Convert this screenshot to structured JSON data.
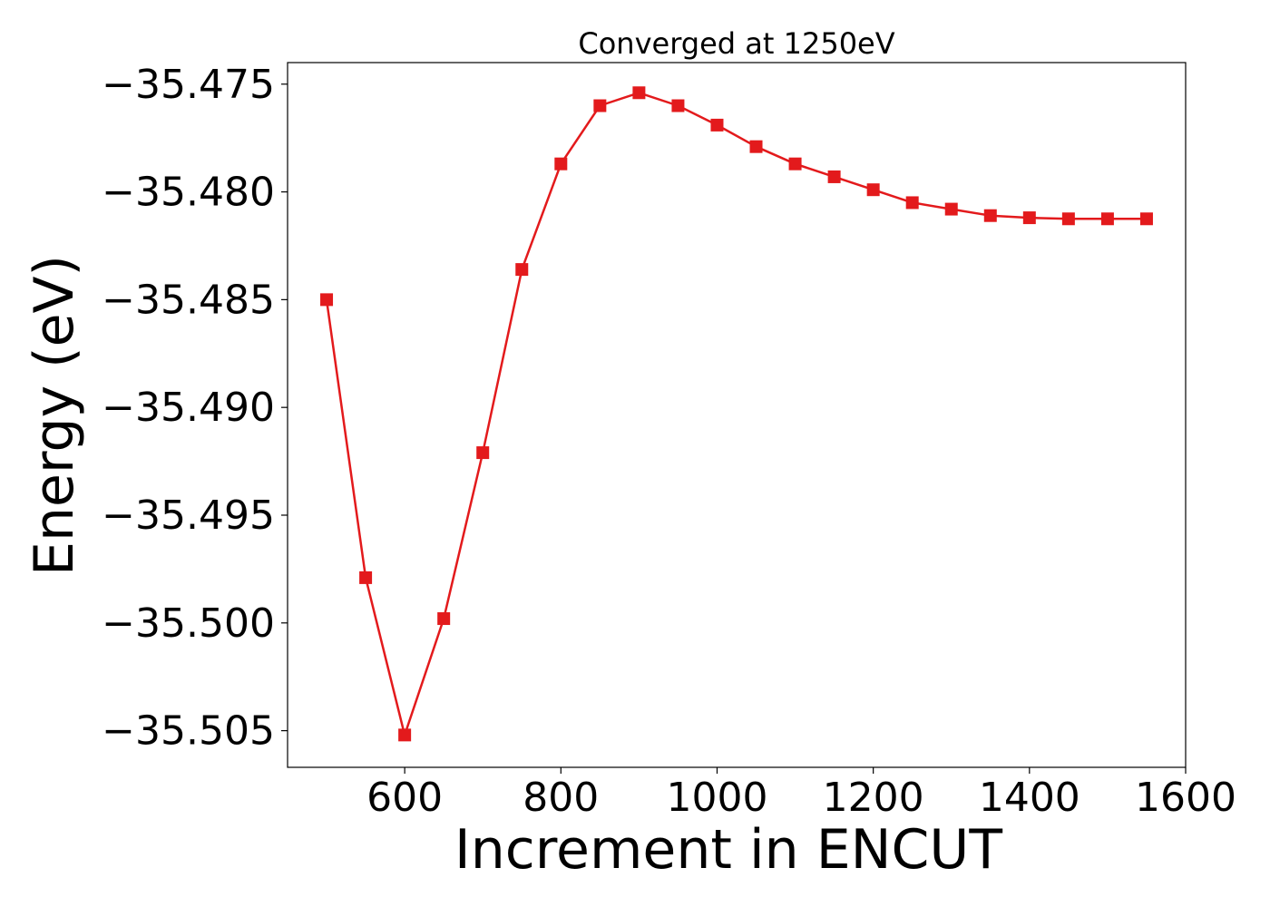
{
  "chart_data": {
    "type": "line",
    "title": "Converged at 1250eV",
    "xlabel": "Increment in ENCUT",
    "ylabel": "Energy (eV)",
    "xlim": [
      450,
      1600
    ],
    "ylim": [
      -35.5067,
      -35.474
    ],
    "x_ticks": [
      600,
      800,
      1000,
      1200,
      1400,
      1600
    ],
    "x_tick_labels": [
      "600",
      "800",
      "1000",
      "1200",
      "1400",
      "1600"
    ],
    "y_ticks": [
      -35.475,
      -35.48,
      -35.485,
      -35.49,
      -35.495,
      -35.5,
      -35.505
    ],
    "y_tick_labels": [
      "−35.475",
      "−35.480",
      "−35.485",
      "−35.490",
      "−35.495",
      "−35.500",
      "−35.505"
    ],
    "grid": false,
    "series": [
      {
        "color": "#e31a1c",
        "marker": "square",
        "x": [
          500,
          550,
          600,
          650,
          700,
          750,
          800,
          850,
          900,
          950,
          1000,
          1050,
          1100,
          1150,
          1200,
          1250,
          1300,
          1350,
          1400,
          1450,
          1500,
          1550
        ],
        "y": [
          -35.485,
          -35.4979,
          -35.5052,
          -35.4998,
          -35.4921,
          -35.4836,
          -35.4787,
          -35.476,
          -35.4754,
          -35.476,
          -35.4769,
          -35.4779,
          -35.4787,
          -35.4793,
          -35.4799,
          -35.4805,
          -35.4808,
          -35.4811,
          -35.4812,
          -35.48125,
          -35.48125,
          -35.48125
        ]
      }
    ]
  }
}
